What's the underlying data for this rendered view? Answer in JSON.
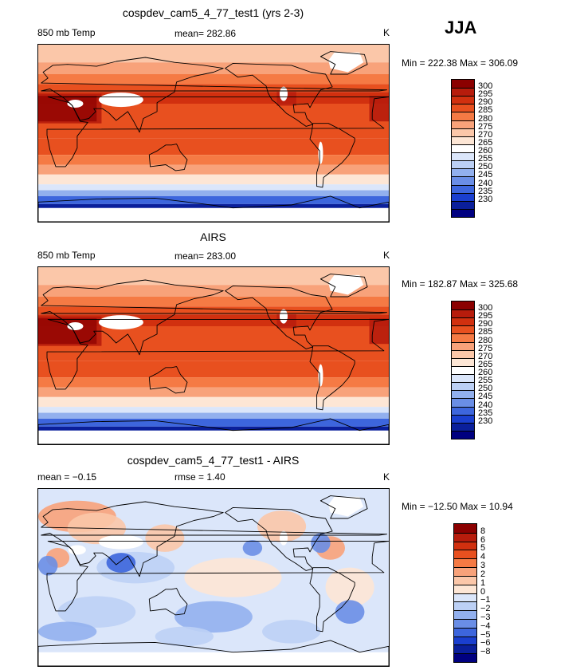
{
  "season": "JJA",
  "panels": [
    {
      "id": "model",
      "title": "cospdev_cam5_4_77_test1 (yrs 2-3)",
      "left_label": "850 mb Temp",
      "mid_label": "mean= 282.86",
      "units": "K",
      "minmax": "Min = 222.38 Max = 306.09",
      "colorbar": [
        "300",
        "295",
        "290",
        "285",
        "280",
        "275",
        "270",
        "265",
        "260",
        "255",
        "250",
        "245",
        "240",
        "235",
        "230"
      ],
      "colors": [
        "#8b0000",
        "#b71c0c",
        "#d1300f",
        "#e8501f",
        "#f57a44",
        "#f8a27a",
        "#fbc7a9",
        "#fde6d5",
        "#ffffff",
        "#dbe6fa",
        "#bcd0f5",
        "#92b0ee",
        "#6a8ee6",
        "#3d66dd",
        "#1a3fcf",
        "#0a1f9b",
        "#000080"
      ],
      "map_type": "absolute"
    },
    {
      "id": "obs",
      "title": "AIRS",
      "left_label": "850 mb Temp",
      "mid_label": "mean= 283.00",
      "units": "K",
      "minmax": "Min = 182.87 Max = 325.68",
      "colorbar": [
        "300",
        "295",
        "290",
        "285",
        "280",
        "275",
        "270",
        "265",
        "260",
        "255",
        "250",
        "245",
        "240",
        "235",
        "230"
      ],
      "colors": [
        "#8b0000",
        "#b71c0c",
        "#d1300f",
        "#e8501f",
        "#f57a44",
        "#f8a27a",
        "#fbc7a9",
        "#fde6d5",
        "#ffffff",
        "#dbe6fa",
        "#bcd0f5",
        "#92b0ee",
        "#6a8ee6",
        "#3d66dd",
        "#1a3fcf",
        "#0a1f9b",
        "#000080"
      ],
      "map_type": "absolute"
    },
    {
      "id": "diff",
      "title": "cospdev_cam5_4_77_test1 - AIRS",
      "left_label": "mean =   −0.15",
      "mid_label": "rmse =    1.40",
      "units": "K",
      "minmax": "Min = −12.50 Max =  10.94",
      "colorbar": [
        "8",
        "6",
        "5",
        "4",
        "3",
        "2",
        "1",
        "0",
        "−1",
        "−2",
        "−3",
        "−4",
        "−5",
        "−6",
        "−8"
      ],
      "colors": [
        "#8b0000",
        "#b71c0c",
        "#d1300f",
        "#e8501f",
        "#f57a44",
        "#f8a27a",
        "#fbc7a9",
        "#fde6d5",
        "#dbe6fa",
        "#bcd0f5",
        "#92b0ee",
        "#6a8ee6",
        "#3d66dd",
        "#1a3fcf",
        "#0a1f9b",
        "#000080"
      ],
      "map_type": "difference"
    }
  ]
}
